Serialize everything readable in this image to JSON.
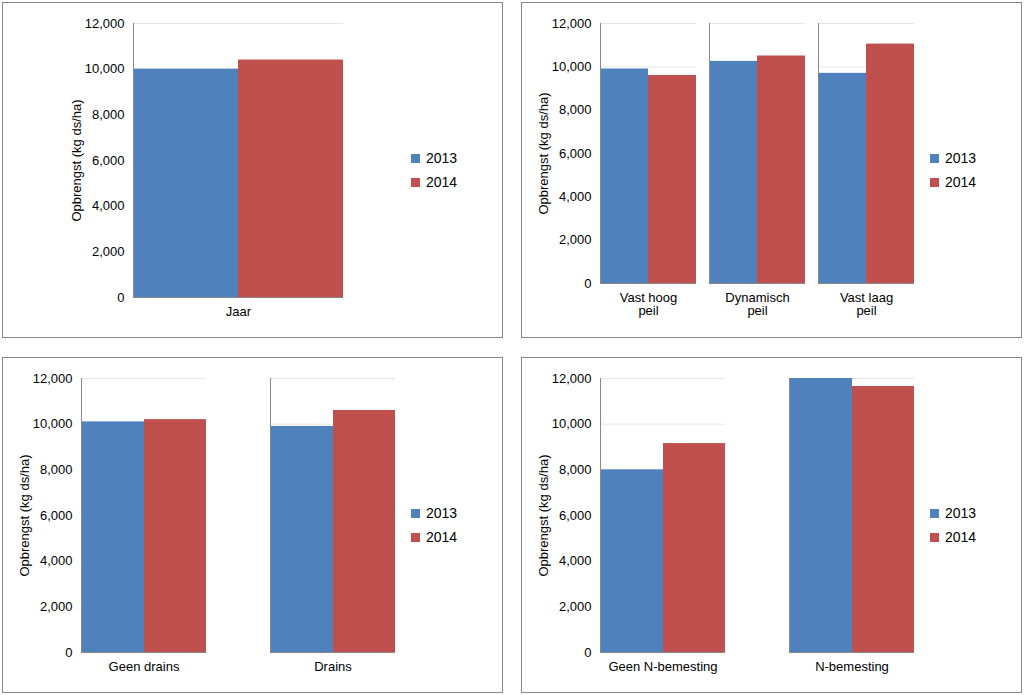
{
  "chart_data": [
    {
      "type": "bar",
      "y_label": "Opbrengst (kg ds/ha)",
      "categories": [
        "Jaar"
      ],
      "series": [
        {
          "name": "2013",
          "color": "#4f81bd",
          "values": [
            10000
          ]
        },
        {
          "name": "2014",
          "color": "#c0504d",
          "values": [
            10400
          ]
        }
      ],
      "ylim": [
        0,
        12000
      ],
      "yticks": [
        0,
        2000,
        4000,
        6000,
        8000,
        10000,
        12000
      ],
      "grid": true,
      "legend": "right"
    },
    {
      "type": "bar",
      "y_label": "Opbrengst (kg ds/ha)",
      "categories": [
        "Vast hoog\npeil",
        "Dynamisch\npeil",
        "Vast laag\npeil"
      ],
      "series": [
        {
          "name": "2013",
          "color": "#4f81bd",
          "values": [
            9900,
            10250,
            9700
          ]
        },
        {
          "name": "2014",
          "color": "#c0504d",
          "values": [
            9600,
            10500,
            11050
          ]
        }
      ],
      "ylim": [
        0,
        12000
      ],
      "yticks": [
        0,
        2000,
        4000,
        6000,
        8000,
        10000,
        12000
      ],
      "grid": true,
      "legend": "right"
    },
    {
      "type": "bar",
      "y_label": "Opbrengst (kg ds/ha)",
      "categories": [
        "Geen drains",
        "Drains"
      ],
      "series": [
        {
          "name": "2013",
          "color": "#4f81bd",
          "values": [
            10100,
            9900
          ]
        },
        {
          "name": "2014",
          "color": "#c0504d",
          "values": [
            10200,
            10600
          ]
        }
      ],
      "ylim": [
        0,
        12000
      ],
      "yticks": [
        0,
        2000,
        4000,
        6000,
        8000,
        10000,
        12000
      ],
      "grid": true,
      "legend": "right"
    },
    {
      "type": "bar",
      "y_label": "Opbrengst (kg ds/ha)",
      "categories": [
        "Geen N-bemesting",
        "N-bemesting"
      ],
      "series": [
        {
          "name": "2013",
          "color": "#4f81bd",
          "values": [
            8000,
            12000
          ]
        },
        {
          "name": "2014",
          "color": "#c0504d",
          "values": [
            9150,
            11650
          ]
        }
      ],
      "ylim": [
        0,
        12000
      ],
      "yticks": [
        0,
        2000,
        4000,
        6000,
        8000,
        10000,
        12000
      ],
      "grid": true,
      "legend": "right"
    }
  ]
}
